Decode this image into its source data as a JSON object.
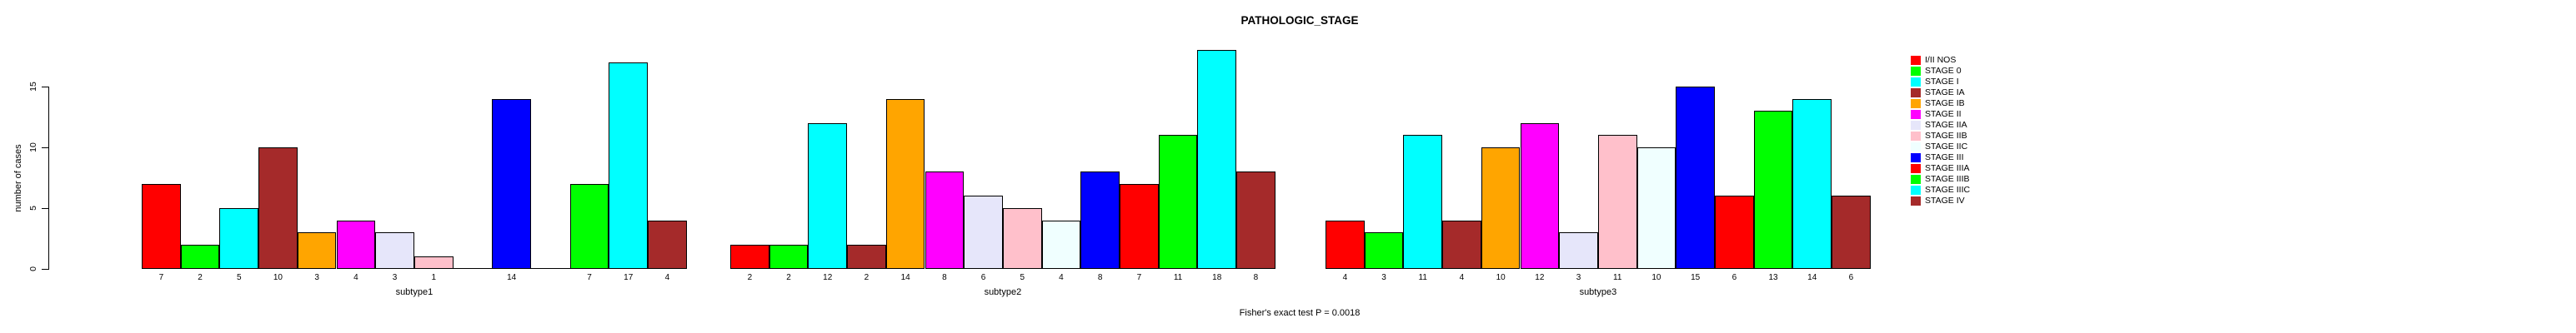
{
  "title": "PATHOLOGIC_STAGE",
  "footer_annotation": "Fisher's exact test P = 0.0018",
  "y_axis": {
    "label": "number of cases",
    "ticks": [
      "0",
      "5",
      "10",
      "15"
    ]
  },
  "legend": {
    "items": [
      {
        "label": "I/II NOS",
        "color": "#FF0000"
      },
      {
        "label": "STAGE 0",
        "color": "#00FF00"
      },
      {
        "label": "STAGE I",
        "color": "#00FFFF"
      },
      {
        "label": "STAGE IA",
        "color": "#A52A2A"
      },
      {
        "label": "STAGE IB",
        "color": "#FFA500"
      },
      {
        "label": "STAGE II",
        "color": "#FF00FF"
      },
      {
        "label": "STAGE IIA",
        "color": "#E6E6FA"
      },
      {
        "label": "STAGE IIB",
        "color": "#FFC0CB"
      },
      {
        "label": "STAGE IIC",
        "color": "#F0FFFF"
      },
      {
        "label": "STAGE III",
        "color": "#0000FF"
      },
      {
        "label": "STAGE IIIA",
        "color": "#FF0000"
      },
      {
        "label": "STAGE IIIB",
        "color": "#00FF00"
      },
      {
        "label": "STAGE IIIC",
        "color": "#00FFFF"
      },
      {
        "label": "STAGE IV",
        "color": "#A52A2A"
      }
    ]
  },
  "chart_data": {
    "type": "bar",
    "title": "PATHOLOGIC_STAGE",
    "xlabel": "",
    "ylabel": "number of cases",
    "ylim": [
      0,
      18.6
    ],
    "yticks": [
      0,
      5,
      10,
      15
    ],
    "grid": false,
    "legend_position": "right",
    "annotation": "Fisher's exact test P = 0.0018",
    "categories": [
      "I/II NOS",
      "STAGE 0",
      "STAGE I",
      "STAGE IA",
      "STAGE IB",
      "STAGE II",
      "STAGE IIA",
      "STAGE IIB",
      "STAGE IIC",
      "STAGE III",
      "STAGE IIIA",
      "STAGE IIIB",
      "STAGE IIIC",
      "STAGE IV"
    ],
    "category_colors": [
      "#FF0000",
      "#00FF00",
      "#00FFFF",
      "#A52A2A",
      "#FFA500",
      "#FF00FF",
      "#E6E6FA",
      "#FFC0CB",
      "#F0FFFF",
      "#0000FF",
      "#FF0000",
      "#00FF00",
      "#00FFFF",
      "#A52A2A"
    ],
    "groups": [
      "subtype1",
      "subtype2",
      "subtype3"
    ],
    "series": [
      {
        "name": "subtype1",
        "values": [
          7,
          2,
          5,
          10,
          3,
          4,
          3,
          1,
          0,
          14,
          0,
          7,
          17,
          4
        ]
      },
      {
        "name": "subtype2",
        "values": [
          2,
          2,
          12,
          2,
          14,
          8,
          6,
          5,
          4,
          8,
          7,
          11,
          18,
          8
        ]
      },
      {
        "name": "subtype3",
        "values": [
          4,
          3,
          11,
          4,
          10,
          12,
          3,
          11,
          10,
          15,
          6,
          13,
          14,
          6
        ]
      }
    ],
    "bar_value_labels_visible": true,
    "zero_values_drawn_as_baseline_segment": true
  }
}
